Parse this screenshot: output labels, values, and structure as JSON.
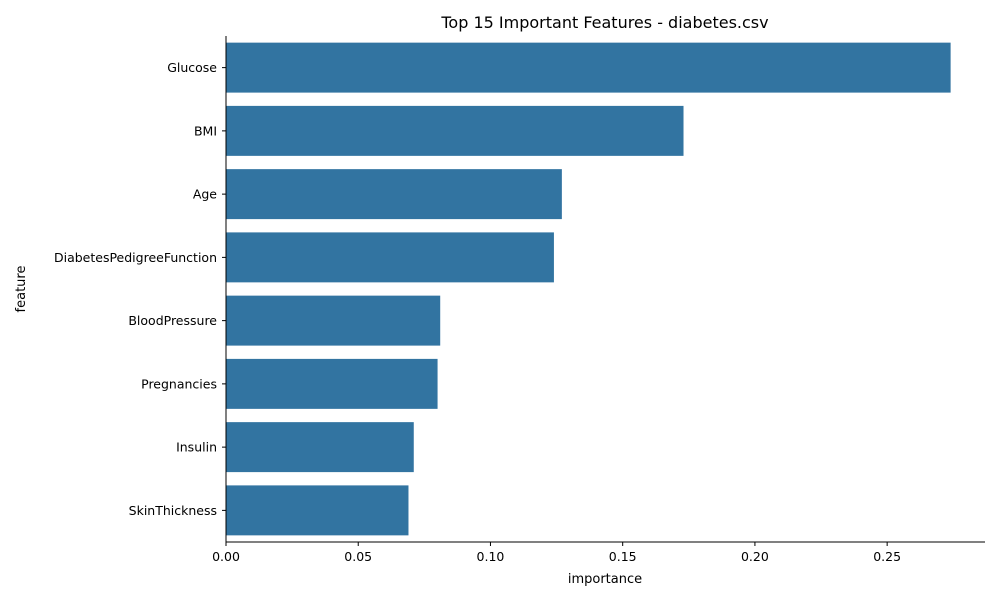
{
  "chart_data": {
    "type": "bar",
    "orientation": "horizontal",
    "title": "Top 15 Important Features - diabetes.csv",
    "xlabel": "importance",
    "ylabel": "feature",
    "categories": [
      "Glucose",
      "BMI",
      "Age",
      "DiabetesPedigreeFunction",
      "BloodPressure",
      "Pregnancies",
      "Insulin",
      "SkinThickness"
    ],
    "values": [
      0.274,
      0.173,
      0.127,
      0.124,
      0.081,
      0.08,
      0.071,
      0.069
    ],
    "xlim": [
      0.0,
      0.287
    ],
    "xticks": [
      0.0,
      0.05,
      0.1,
      0.15,
      0.2,
      0.25
    ],
    "xtick_labels": [
      "0.00",
      "0.05",
      "0.10",
      "0.15",
      "0.20",
      "0.25"
    ],
    "bar_color": "#3274a1",
    "grid": false
  }
}
